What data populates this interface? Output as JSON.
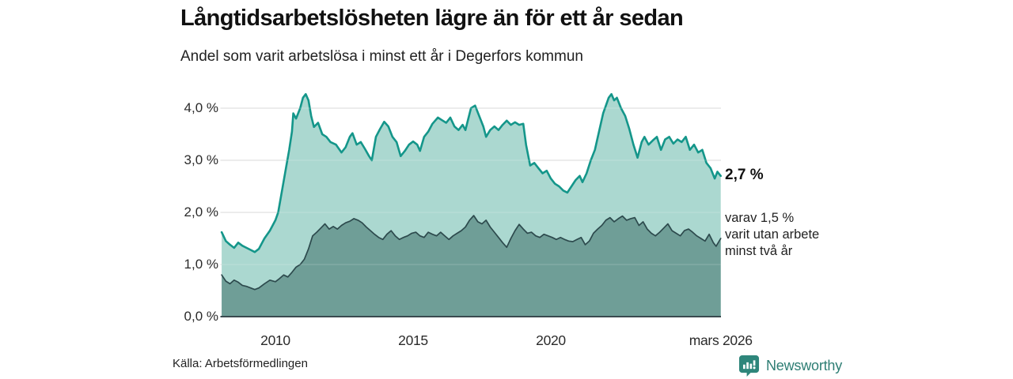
{
  "header": {
    "title": "Långtidsarbetslösheten lägre än för ett år sedan",
    "subtitle": "Andel som varit arbetslösa i minst ett år i Degerfors kommun"
  },
  "annotations": {
    "latest_total_label": "2,7 %",
    "latest_sub_label": "varav 1,5 %\nvarit utan arbete\nminst två år"
  },
  "footer": {
    "source": "Källa: Arbetsförmedlingen",
    "brand": "Newsworthy",
    "brand_color": "#2e7e74",
    "brand_icon_color": "#2e867b"
  },
  "chart_data": {
    "type": "area",
    "title": "Långtidsarbetslösheten lägre än för ett år sedan",
    "subtitle": "Andel som varit arbetslösa i minst ett år i Degerfors kommun",
    "unit": "%",
    "xlim": [
      2008.0,
      2026.25
    ],
    "ylim": [
      0,
      4.5
    ],
    "grid": true,
    "grid_color": "#d9d9d9",
    "baseline_color": "#3a4a4f",
    "y_ticks": [
      {
        "v": 0,
        "label": "0,0 %"
      },
      {
        "v": 1,
        "label": "1,0 %"
      },
      {
        "v": 2,
        "label": "2,0 %"
      },
      {
        "v": 3,
        "label": "3,0 %"
      },
      {
        "v": 4,
        "label": "4,0 %"
      }
    ],
    "x_ticks": [
      {
        "x": 2010,
        "label": "2010"
      },
      {
        "x": 2015,
        "label": "2015"
      },
      {
        "x": 2020,
        "label": "2020"
      },
      {
        "x": 2026.17,
        "label": "mars 2026"
      }
    ],
    "latest": {
      "total_pct": 2.7,
      "two_years_pct": 1.5
    },
    "series": [
      {
        "name": "Andel som varit arbetslösa i minst ett år",
        "line_color": "#14968a",
        "fill_color": "#abd8d0",
        "line_width": 2.6,
        "points": [
          [
            2008.05,
            1.62
          ],
          [
            2008.2,
            1.45
          ],
          [
            2008.35,
            1.38
          ],
          [
            2008.5,
            1.32
          ],
          [
            2008.65,
            1.42
          ],
          [
            2008.8,
            1.36
          ],
          [
            2008.95,
            1.32
          ],
          [
            2009.1,
            1.28
          ],
          [
            2009.25,
            1.24
          ],
          [
            2009.4,
            1.3
          ],
          [
            2009.6,
            1.5
          ],
          [
            2009.8,
            1.65
          ],
          [
            2010.0,
            1.85
          ],
          [
            2010.1,
            2.0
          ],
          [
            2010.25,
            2.45
          ],
          [
            2010.4,
            2.9
          ],
          [
            2010.5,
            3.2
          ],
          [
            2010.6,
            3.55
          ],
          [
            2010.65,
            3.9
          ],
          [
            2010.75,
            3.8
          ],
          [
            2010.9,
            4.0
          ],
          [
            2011.0,
            4.2
          ],
          [
            2011.1,
            4.27
          ],
          [
            2011.2,
            4.15
          ],
          [
            2011.3,
            3.85
          ],
          [
            2011.4,
            3.64
          ],
          [
            2011.55,
            3.72
          ],
          [
            2011.7,
            3.5
          ],
          [
            2011.85,
            3.45
          ],
          [
            2012.0,
            3.35
          ],
          [
            2012.2,
            3.3
          ],
          [
            2012.4,
            3.15
          ],
          [
            2012.55,
            3.25
          ],
          [
            2012.7,
            3.45
          ],
          [
            2012.8,
            3.52
          ],
          [
            2012.95,
            3.3
          ],
          [
            2013.1,
            3.35
          ],
          [
            2013.25,
            3.22
          ],
          [
            2013.4,
            3.08
          ],
          [
            2013.5,
            3.0
          ],
          [
            2013.65,
            3.45
          ],
          [
            2013.8,
            3.6
          ],
          [
            2013.95,
            3.74
          ],
          [
            2014.1,
            3.65
          ],
          [
            2014.25,
            3.45
          ],
          [
            2014.4,
            3.35
          ],
          [
            2014.55,
            3.08
          ],
          [
            2014.7,
            3.18
          ],
          [
            2014.85,
            3.3
          ],
          [
            2015.0,
            3.36
          ],
          [
            2015.15,
            3.3
          ],
          [
            2015.25,
            3.18
          ],
          [
            2015.4,
            3.45
          ],
          [
            2015.55,
            3.55
          ],
          [
            2015.7,
            3.7
          ],
          [
            2015.9,
            3.82
          ],
          [
            2016.05,
            3.77
          ],
          [
            2016.2,
            3.72
          ],
          [
            2016.35,
            3.82
          ],
          [
            2016.5,
            3.65
          ],
          [
            2016.65,
            3.58
          ],
          [
            2016.8,
            3.68
          ],
          [
            2016.9,
            3.58
          ],
          [
            2017.1,
            4.0
          ],
          [
            2017.25,
            4.05
          ],
          [
            2017.4,
            3.85
          ],
          [
            2017.55,
            3.65
          ],
          [
            2017.65,
            3.45
          ],
          [
            2017.8,
            3.58
          ],
          [
            2017.95,
            3.65
          ],
          [
            2018.1,
            3.58
          ],
          [
            2018.25,
            3.68
          ],
          [
            2018.4,
            3.76
          ],
          [
            2018.55,
            3.68
          ],
          [
            2018.7,
            3.73
          ],
          [
            2018.85,
            3.68
          ],
          [
            2019.0,
            3.7
          ],
          [
            2019.1,
            3.3
          ],
          [
            2019.25,
            2.9
          ],
          [
            2019.4,
            2.95
          ],
          [
            2019.55,
            2.85
          ],
          [
            2019.7,
            2.75
          ],
          [
            2019.85,
            2.8
          ],
          [
            2020.0,
            2.65
          ],
          [
            2020.15,
            2.55
          ],
          [
            2020.3,
            2.5
          ],
          [
            2020.45,
            2.42
          ],
          [
            2020.6,
            2.38
          ],
          [
            2020.75,
            2.5
          ],
          [
            2020.9,
            2.62
          ],
          [
            2021.05,
            2.7
          ],
          [
            2021.15,
            2.58
          ],
          [
            2021.3,
            2.75
          ],
          [
            2021.45,
            3.0
          ],
          [
            2021.6,
            3.2
          ],
          [
            2021.75,
            3.55
          ],
          [
            2021.9,
            3.9
          ],
          [
            2022.0,
            4.05
          ],
          [
            2022.1,
            4.2
          ],
          [
            2022.2,
            4.27
          ],
          [
            2022.3,
            4.15
          ],
          [
            2022.4,
            4.2
          ],
          [
            2022.55,
            4.0
          ],
          [
            2022.7,
            3.85
          ],
          [
            2022.85,
            3.6
          ],
          [
            2023.0,
            3.3
          ],
          [
            2023.15,
            3.05
          ],
          [
            2023.3,
            3.35
          ],
          [
            2023.4,
            3.45
          ],
          [
            2023.55,
            3.3
          ],
          [
            2023.7,
            3.38
          ],
          [
            2023.85,
            3.45
          ],
          [
            2024.0,
            3.2
          ],
          [
            2024.15,
            3.4
          ],
          [
            2024.3,
            3.45
          ],
          [
            2024.45,
            3.32
          ],
          [
            2024.6,
            3.4
          ],
          [
            2024.75,
            3.35
          ],
          [
            2024.9,
            3.45
          ],
          [
            2025.05,
            3.2
          ],
          [
            2025.2,
            3.3
          ],
          [
            2025.35,
            3.15
          ],
          [
            2025.5,
            3.2
          ],
          [
            2025.65,
            2.95
          ],
          [
            2025.8,
            2.85
          ],
          [
            2025.95,
            2.65
          ],
          [
            2026.05,
            2.78
          ],
          [
            2026.17,
            2.7
          ]
        ]
      },
      {
        "name": "varav varit utan arbete minst två år",
        "line_color": "#2d4a4d",
        "fill_color": "#6f9e97",
        "line_width": 1.7,
        "points": [
          [
            2008.05,
            0.8
          ],
          [
            2008.2,
            0.68
          ],
          [
            2008.35,
            0.63
          ],
          [
            2008.5,
            0.7
          ],
          [
            2008.65,
            0.66
          ],
          [
            2008.8,
            0.6
          ],
          [
            2008.95,
            0.58
          ],
          [
            2009.1,
            0.55
          ],
          [
            2009.25,
            0.52
          ],
          [
            2009.4,
            0.55
          ],
          [
            2009.6,
            0.63
          ],
          [
            2009.8,
            0.7
          ],
          [
            2010.0,
            0.67
          ],
          [
            2010.15,
            0.73
          ],
          [
            2010.3,
            0.8
          ],
          [
            2010.45,
            0.76
          ],
          [
            2010.6,
            0.85
          ],
          [
            2010.75,
            0.95
          ],
          [
            2010.9,
            1.0
          ],
          [
            2011.05,
            1.1
          ],
          [
            2011.2,
            1.3
          ],
          [
            2011.35,
            1.55
          ],
          [
            2011.5,
            1.62
          ],
          [
            2011.65,
            1.7
          ],
          [
            2011.8,
            1.78
          ],
          [
            2011.95,
            1.68
          ],
          [
            2012.1,
            1.73
          ],
          [
            2012.25,
            1.68
          ],
          [
            2012.4,
            1.75
          ],
          [
            2012.55,
            1.8
          ],
          [
            2012.7,
            1.83
          ],
          [
            2012.85,
            1.88
          ],
          [
            2013.0,
            1.85
          ],
          [
            2013.15,
            1.8
          ],
          [
            2013.3,
            1.72
          ],
          [
            2013.45,
            1.65
          ],
          [
            2013.6,
            1.58
          ],
          [
            2013.75,
            1.52
          ],
          [
            2013.9,
            1.48
          ],
          [
            2014.05,
            1.58
          ],
          [
            2014.2,
            1.65
          ],
          [
            2014.35,
            1.55
          ],
          [
            2014.5,
            1.48
          ],
          [
            2014.65,
            1.52
          ],
          [
            2014.8,
            1.55
          ],
          [
            2014.95,
            1.6
          ],
          [
            2015.1,
            1.62
          ],
          [
            2015.25,
            1.55
          ],
          [
            2015.4,
            1.52
          ],
          [
            2015.55,
            1.62
          ],
          [
            2015.7,
            1.58
          ],
          [
            2015.85,
            1.55
          ],
          [
            2016.0,
            1.62
          ],
          [
            2016.15,
            1.55
          ],
          [
            2016.3,
            1.48
          ],
          [
            2016.45,
            1.55
          ],
          [
            2016.6,
            1.6
          ],
          [
            2016.75,
            1.65
          ],
          [
            2016.9,
            1.72
          ],
          [
            2017.05,
            1.85
          ],
          [
            2017.2,
            1.94
          ],
          [
            2017.35,
            1.82
          ],
          [
            2017.5,
            1.78
          ],
          [
            2017.65,
            1.85
          ],
          [
            2017.8,
            1.72
          ],
          [
            2017.95,
            1.62
          ],
          [
            2018.1,
            1.52
          ],
          [
            2018.25,
            1.42
          ],
          [
            2018.4,
            1.33
          ],
          [
            2018.55,
            1.5
          ],
          [
            2018.7,
            1.65
          ],
          [
            2018.85,
            1.77
          ],
          [
            2019.0,
            1.68
          ],
          [
            2019.15,
            1.6
          ],
          [
            2019.3,
            1.62
          ],
          [
            2019.45,
            1.55
          ],
          [
            2019.6,
            1.52
          ],
          [
            2019.75,
            1.58
          ],
          [
            2019.9,
            1.55
          ],
          [
            2020.05,
            1.52
          ],
          [
            2020.2,
            1.48
          ],
          [
            2020.35,
            1.52
          ],
          [
            2020.5,
            1.48
          ],
          [
            2020.65,
            1.45
          ],
          [
            2020.8,
            1.44
          ],
          [
            2020.95,
            1.48
          ],
          [
            2021.1,
            1.52
          ],
          [
            2021.25,
            1.38
          ],
          [
            2021.4,
            1.45
          ],
          [
            2021.55,
            1.6
          ],
          [
            2021.7,
            1.68
          ],
          [
            2021.85,
            1.75
          ],
          [
            2022.0,
            1.85
          ],
          [
            2022.15,
            1.9
          ],
          [
            2022.3,
            1.82
          ],
          [
            2022.45,
            1.88
          ],
          [
            2022.6,
            1.93
          ],
          [
            2022.75,
            1.85
          ],
          [
            2022.9,
            1.88
          ],
          [
            2023.05,
            1.9
          ],
          [
            2023.2,
            1.75
          ],
          [
            2023.35,
            1.82
          ],
          [
            2023.5,
            1.68
          ],
          [
            2023.65,
            1.6
          ],
          [
            2023.8,
            1.55
          ],
          [
            2023.95,
            1.62
          ],
          [
            2024.1,
            1.7
          ],
          [
            2024.25,
            1.78
          ],
          [
            2024.4,
            1.65
          ],
          [
            2024.55,
            1.6
          ],
          [
            2024.7,
            1.55
          ],
          [
            2024.85,
            1.65
          ],
          [
            2025.0,
            1.68
          ],
          [
            2025.15,
            1.62
          ],
          [
            2025.3,
            1.55
          ],
          [
            2025.45,
            1.5
          ],
          [
            2025.6,
            1.45
          ],
          [
            2025.75,
            1.58
          ],
          [
            2025.9,
            1.42
          ],
          [
            2026.0,
            1.35
          ],
          [
            2026.17,
            1.5
          ]
        ]
      }
    ]
  }
}
